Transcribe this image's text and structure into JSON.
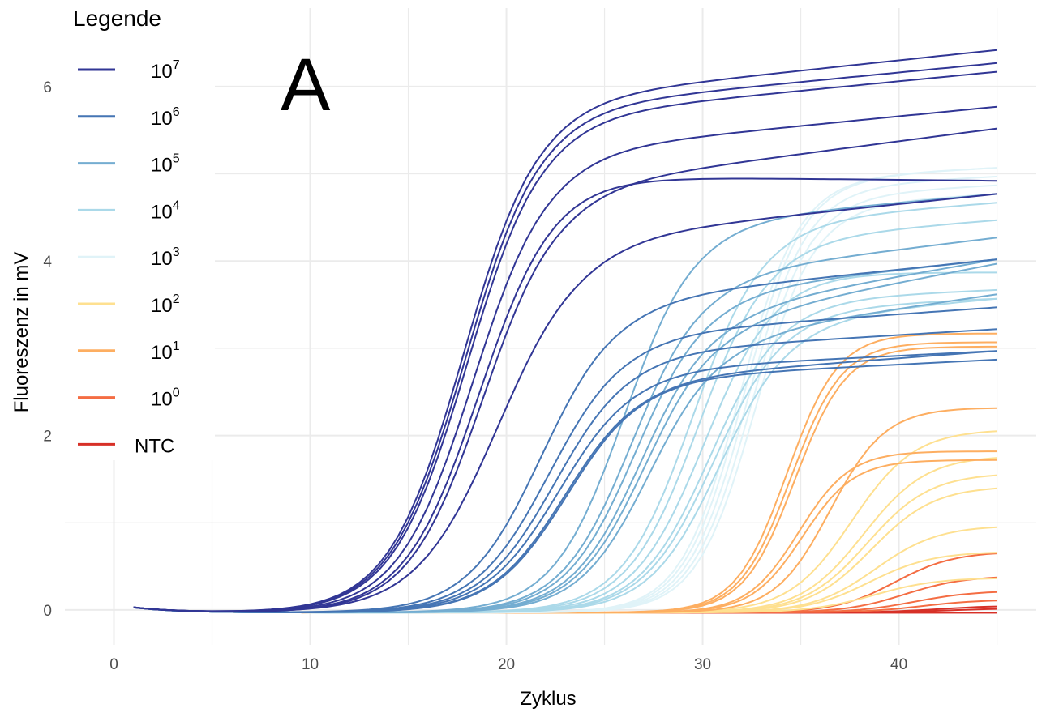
{
  "chart_data": {
    "type": "line",
    "panel_label": "A",
    "xlabel": "Zyklus",
    "ylabel": "Fluoreszenz in mV",
    "xlim": [
      -2.5,
      47
    ],
    "ylim": [
      -0.4,
      6.9
    ],
    "x_ticks": [
      0,
      10,
      20,
      30,
      40
    ],
    "y_ticks": [
      0,
      2,
      4,
      6
    ],
    "grid": true,
    "legend": {
      "title": "Legende",
      "position": "top-left",
      "entries": [
        {
          "label": "10",
          "sup": "7",
          "color": "#313695"
        },
        {
          "label": "10",
          "sup": "6",
          "color": "#4575b4"
        },
        {
          "label": "10",
          "sup": "5",
          "color": "#74add1"
        },
        {
          "label": "10",
          "sup": "4",
          "color": "#abd9e9"
        },
        {
          "label": "10",
          "sup": "3",
          "color": "#e0f3f8"
        },
        {
          "label": "10",
          "sup": "2",
          "color": "#fee090"
        },
        {
          "label": "10",
          "sup": "1",
          "color": "#fdae61"
        },
        {
          "label": "10",
          "sup": "0",
          "color": "#f46d43"
        },
        {
          "label": "NTC",
          "sup": "",
          "color": "#d73027"
        }
      ]
    },
    "cycles": {
      "start": 1,
      "end": 45
    },
    "series": [
      {
        "group": 0,
        "curves": [
          {
            "ct": 17.8,
            "plateau": 5.9,
            "slope": 1.9,
            "drift": 0.55
          },
          {
            "ct": 17.9,
            "plateau": 5.8,
            "slope": 1.9,
            "drift": 0.5
          },
          {
            "ct": 18.0,
            "plateau": 5.7,
            "slope": 1.9,
            "drift": 0.5
          },
          {
            "ct": 18.3,
            "plateau": 5.3,
            "slope": 1.9,
            "drift": 0.5
          },
          {
            "ct": 18.8,
            "plateau": 4.9,
            "slope": 1.9,
            "drift": 0.65
          },
          {
            "ct": 18.6,
            "plateau": 5.0,
            "slope": 1.9,
            "drift": -0.05
          },
          {
            "ct": 19.6,
            "plateau": 4.3,
            "slope": 2.1,
            "drift": 0.5
          }
        ]
      },
      {
        "group": 1,
        "curves": [
          {
            "ct": 21.8,
            "plateau": 3.6,
            "slope": 1.9,
            "drift": 0.45
          },
          {
            "ct": 22.2,
            "plateau": 3.2,
            "slope": 1.9,
            "drift": 0.3
          },
          {
            "ct": 22.5,
            "plateau": 3.0,
            "slope": 1.9,
            "drift": 0.25
          },
          {
            "ct": 22.7,
            "plateau": 2.8,
            "slope": 1.9,
            "drift": 0.2
          },
          {
            "ct": 23.0,
            "plateau": 2.7,
            "slope": 1.9,
            "drift": 0.3
          },
          {
            "ct": 23.1,
            "plateau": 2.7,
            "slope": 1.9,
            "drift": 0.2
          }
        ]
      },
      {
        "group": 2,
        "curves": [
          {
            "ct": 26.0,
            "plateau": 4.5,
            "slope": 1.8,
            "drift": 0.3
          },
          {
            "ct": 26.4,
            "plateau": 3.9,
            "slope": 1.8,
            "drift": 0.4
          },
          {
            "ct": 26.6,
            "plateau": 3.7,
            "slope": 1.8,
            "drift": 0.35
          },
          {
            "ct": 26.9,
            "plateau": 3.5,
            "slope": 1.8,
            "drift": 0.55
          },
          {
            "ct": 27.1,
            "plateau": 3.4,
            "slope": 1.8,
            "drift": 0.6
          },
          {
            "ct": 27.3,
            "plateau": 3.2,
            "slope": 1.8,
            "drift": 0.45
          }
        ]
      },
      {
        "group": 3,
        "curves": [
          {
            "ct": 29.5,
            "plateau": 4.5,
            "slope": 1.8,
            "drift": 0.2
          },
          {
            "ct": 29.8,
            "plateau": 4.3,
            "slope": 1.8,
            "drift": 0.2
          },
          {
            "ct": 30.1,
            "plateau": 3.9,
            "slope": 1.8,
            "drift": 0.0
          },
          {
            "ct": 30.4,
            "plateau": 3.6,
            "slope": 1.8,
            "drift": 0.1
          },
          {
            "ct": 30.6,
            "plateau": 3.5,
            "slope": 1.8,
            "drift": 0.1
          },
          {
            "ct": 30.9,
            "plateau": 3.4,
            "slope": 1.8,
            "drift": 0.2
          }
        ]
      },
      {
        "group": 4,
        "curves": [
          {
            "ct": 31.9,
            "plateau": 5.0,
            "slope": 1.5,
            "drift": 0.1
          },
          {
            "ct": 32.1,
            "plateau": 5.0,
            "slope": 1.5,
            "drift": 0.1
          },
          {
            "ct": 32.3,
            "plateau": 4.9,
            "slope": 1.5,
            "drift": 0.1
          },
          {
            "ct": 32.5,
            "plateau": 4.8,
            "slope": 1.5,
            "drift": 0.1
          },
          {
            "ct": 32.7,
            "plateau": 4.7,
            "slope": 1.5,
            "drift": 0.1
          }
        ]
      },
      {
        "group": 5,
        "curves": [
          {
            "ct": 37.6,
            "plateau": 2.1,
            "slope": 1.6,
            "drift": 0.0
          },
          {
            "ct": 38.2,
            "plateau": 1.8,
            "slope": 1.6,
            "drift": 0.0
          },
          {
            "ct": 38.4,
            "plateau": 1.6,
            "slope": 1.6,
            "drift": 0.0
          },
          {
            "ct": 38.6,
            "plateau": 1.45,
            "slope": 1.6,
            "drift": 0.0
          },
          {
            "ct": 38.8,
            "plateau": 1.0,
            "slope": 1.6,
            "drift": 0.0
          },
          {
            "ct": 38.5,
            "plateau": 0.7,
            "slope": 1.6,
            "drift": 0.0
          },
          {
            "ct": 38.7,
            "plateau": 0.4,
            "slope": 1.6,
            "drift": 0.0
          }
        ]
      },
      {
        "group": 6,
        "curves": [
          {
            "ct": 34.3,
            "plateau": 3.2,
            "slope": 1.3,
            "drift": 0.0
          },
          {
            "ct": 34.5,
            "plateau": 3.1,
            "slope": 1.3,
            "drift": 0.0
          },
          {
            "ct": 34.7,
            "plateau": 3.05,
            "slope": 1.3,
            "drift": 0.0
          },
          {
            "ct": 36.5,
            "plateau": 2.35,
            "slope": 1.4,
            "drift": 0.0
          },
          {
            "ct": 34.9,
            "plateau": 1.85,
            "slope": 1.3,
            "drift": 0.0
          },
          {
            "ct": 35.1,
            "plateau": 1.75,
            "slope": 1.3,
            "drift": 0.0
          }
        ]
      },
      {
        "group": 7,
        "curves": [
          {
            "ct": 39.8,
            "plateau": 0.7,
            "slope": 1.5,
            "drift": 0.0
          },
          {
            "ct": 40.3,
            "plateau": 0.42,
            "slope": 1.5,
            "drift": 0.0
          },
          {
            "ct": 40.8,
            "plateau": 0.25,
            "slope": 1.5,
            "drift": 0.0
          },
          {
            "ct": 41.2,
            "plateau": 0.15,
            "slope": 1.5,
            "drift": 0.0
          }
        ]
      },
      {
        "group": 8,
        "curves": [
          {
            "ct": 42.0,
            "plateau": 0.08,
            "slope": 1.5,
            "drift": 0.0
          },
          {
            "ct": 42.5,
            "plateau": 0.05,
            "slope": 1.5,
            "drift": 0.0
          },
          {
            "ct": 60,
            "plateau": 0.0,
            "slope": 1.5,
            "drift": -0.05
          },
          {
            "ct": 60,
            "plateau": 0.0,
            "slope": 1.5,
            "drift": -0.08
          },
          {
            "ct": 60,
            "plateau": 0.0,
            "slope": 1.5,
            "drift": -0.1
          }
        ]
      }
    ]
  }
}
